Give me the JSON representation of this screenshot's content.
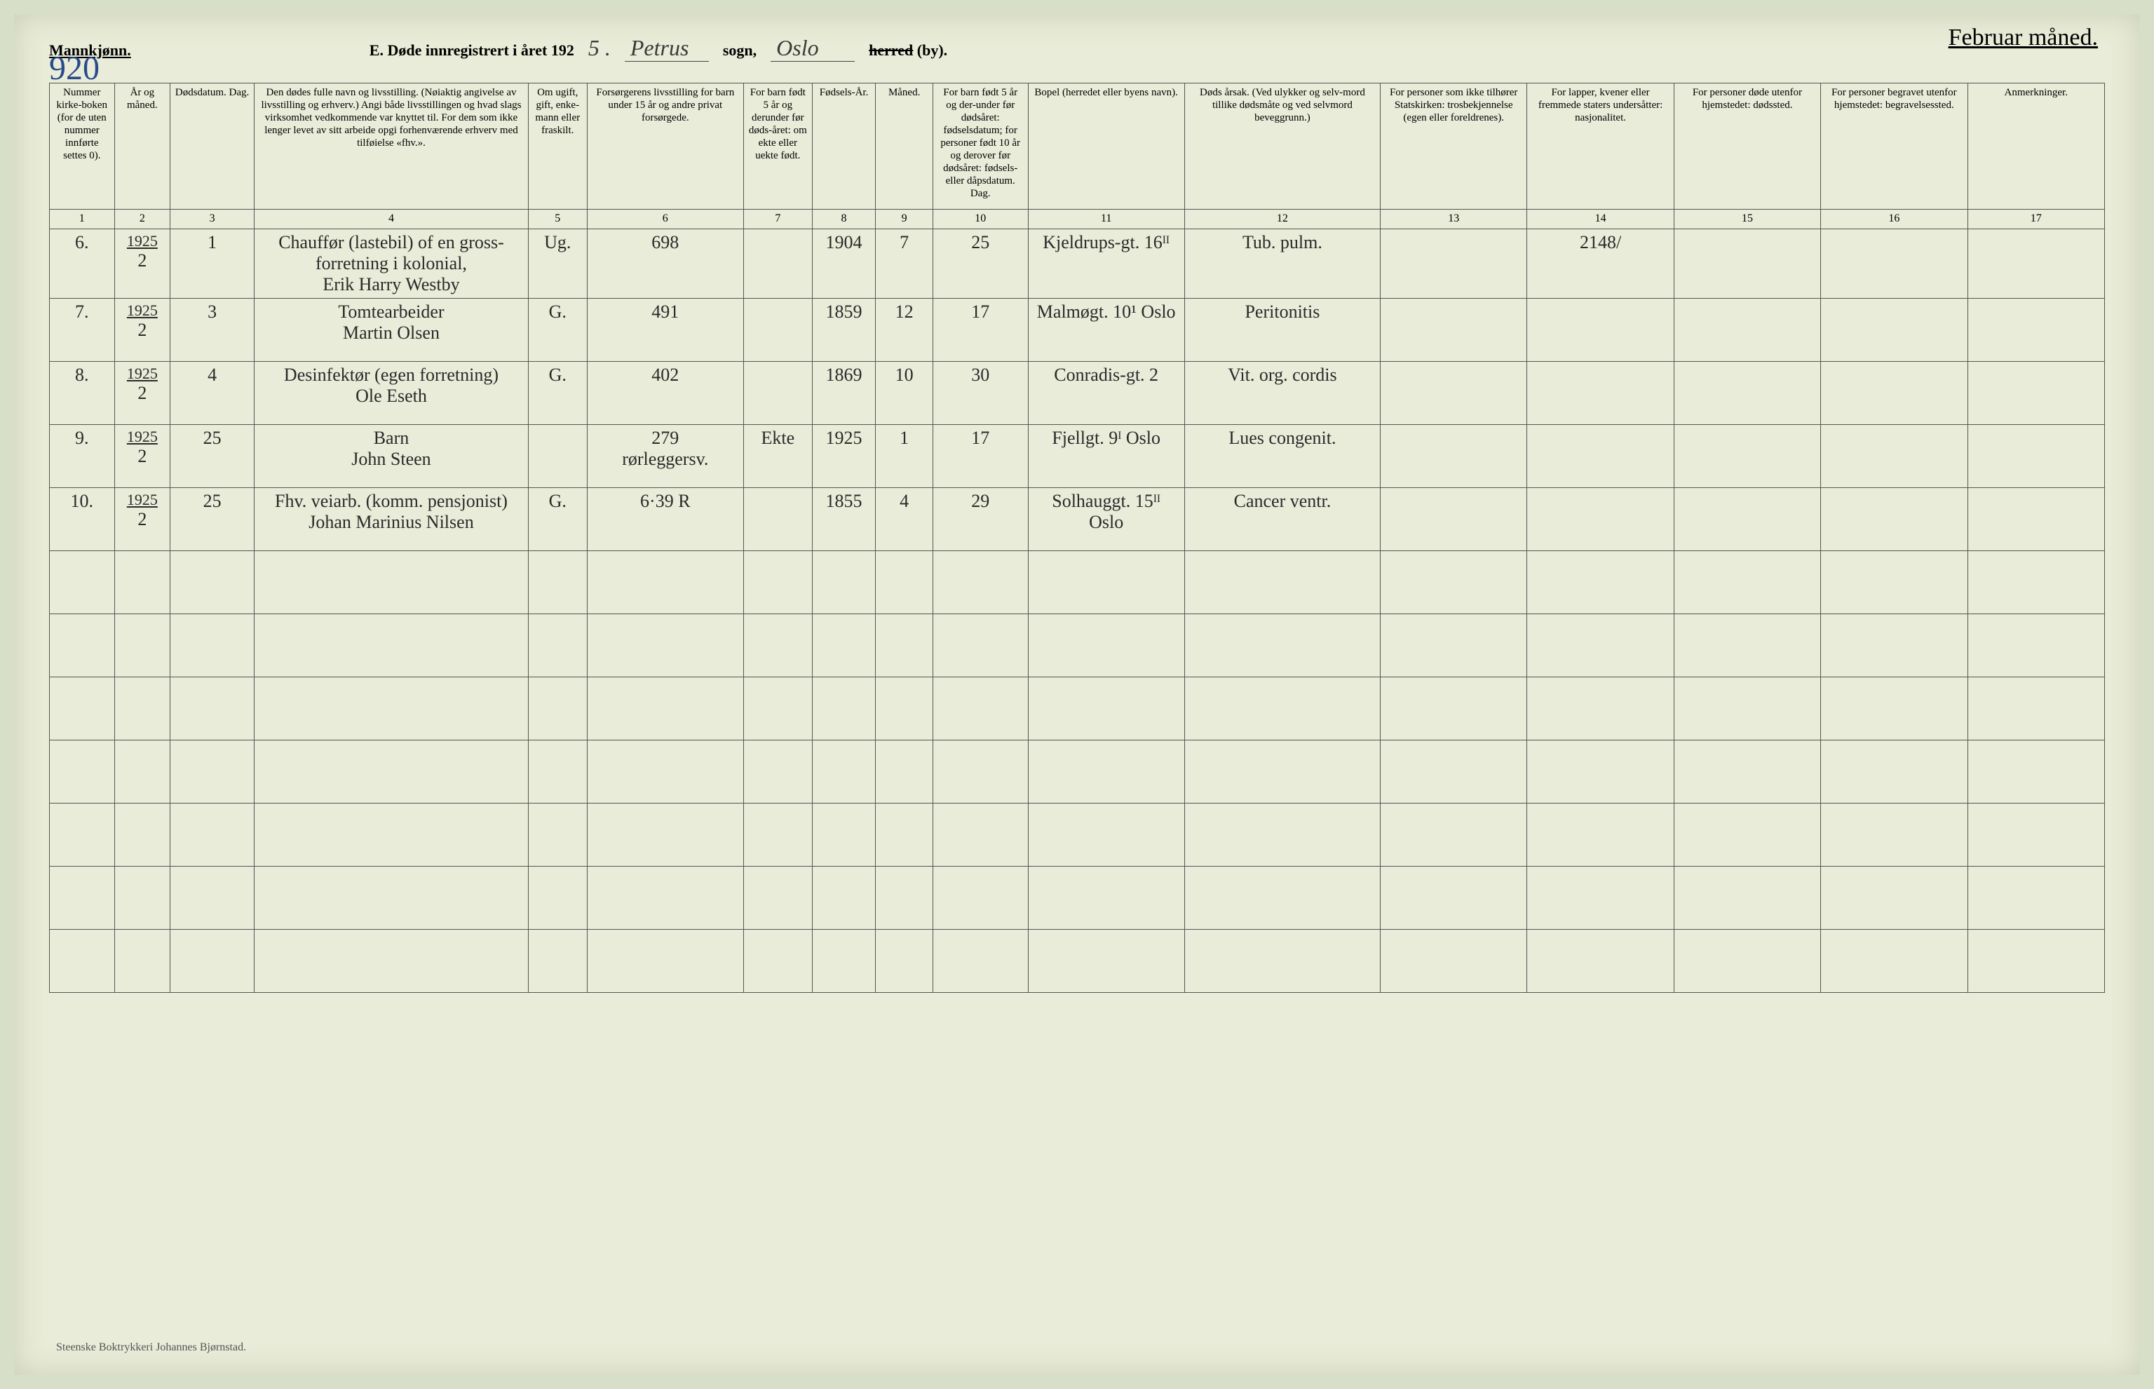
{
  "header": {
    "gender": "Mannkjønn.",
    "form_label": "E.  Døde innregistrert i året 192",
    "year_suffix": "5 .",
    "parish_value": "Petrus",
    "parish_label": "sogn,",
    "county_value": "Oslo",
    "by_label_struck": "herred",
    "by_label": " (by).",
    "month_header": "Februar måned.",
    "page_number": "920"
  },
  "columns": [
    {
      "num": "1",
      "label": "Nummer kirke-boken (for de uten nummer innførte settes 0)."
    },
    {
      "num": "2",
      "label": "År og måned."
    },
    {
      "num": "3",
      "label": "Dødsdatum.\nDag."
    },
    {
      "num": "4",
      "label": "Den dødes fulle navn og livsstilling. (Nøiaktig angivelse av livsstilling og erhverv.) Angi både livsstillingen og hvad slags virksomhet vedkommende var knyttet til. For dem som ikke lenger levet av sitt arbeide opgi forhenværende erhverv med tilføielse «fhv.»."
    },
    {
      "num": "5",
      "label": "Om ugift, gift, enke-mann eller fraskilt."
    },
    {
      "num": "6",
      "label": "Forsørgerens livsstilling for barn under 15 år og andre privat forsørgede."
    },
    {
      "num": "7",
      "label": "For barn født 5 år og derunder før døds-året: om ekte eller uekte født."
    },
    {
      "num": "8",
      "label": "Fødsels-År."
    },
    {
      "num": "9",
      "label": "Måned."
    },
    {
      "num": "10",
      "label": "For barn født 5 år og der-under før dødsåret: fødselsdatum; for personer født 10 år og derover før dødsåret: fødsels- eller dåpsdatum.\nDag."
    },
    {
      "num": "11",
      "label": "Bopel (herredet eller byens navn)."
    },
    {
      "num": "12",
      "label": "Døds årsak. (Ved ulykker og selv-mord tillike dødsmåte og ved selvmord beveggrunn.)"
    },
    {
      "num": "13",
      "label": "For personer som ikke tilhører Statskirken: trosbekjennelse (egen eller foreldrenes)."
    },
    {
      "num": "14",
      "label": "For lapper, kvener eller fremmede staters undersåtter: nasjonalitet."
    },
    {
      "num": "15",
      "label": "For personer døde utenfor hjemstedet: dødssted."
    },
    {
      "num": "16",
      "label": "For personer begravet utenfor hjemstedet: begravelsessted."
    },
    {
      "num": "17",
      "label": "Anmerkninger."
    }
  ],
  "rows": [
    {
      "num": "6.",
      "year": "1925",
      "month": "2",
      "day": "1",
      "name": "Chauffør (lastebil) of en gross-forretning i kolonial,\nErik Harry Westby",
      "status": "Ug.",
      "provider": "698",
      "legit": "",
      "birth_year": "1904",
      "birth_m": "7",
      "birth_d": "25",
      "residence": "Kjeldrups-gt. 16ᴵᴵ",
      "cause": "Tub. pulm.",
      "faith": "",
      "nat": "2148/",
      "deathpl": "",
      "burial": "",
      "notes": ""
    },
    {
      "num": "7.",
      "year": "1925",
      "month": "2",
      "day": "3",
      "name": "Tomtearbeider\nMartin Olsen",
      "status": "G.",
      "provider": "491",
      "legit": "",
      "birth_year": "1859",
      "birth_m": "12",
      "birth_d": "17",
      "residence": "Malmøgt. 10¹  Oslo",
      "cause": "Peritonitis",
      "faith": "",
      "nat": "",
      "deathpl": "",
      "burial": "",
      "notes": ""
    },
    {
      "num": "8.",
      "year": "1925",
      "month": "2",
      "day": "4",
      "name": "Desinfektør (egen forretning)\nOle Eseth",
      "status": "G.",
      "provider": "402",
      "legit": "",
      "birth_year": "1869",
      "birth_m": "10",
      "birth_d": "30",
      "residence": "Conradis-gt. 2",
      "cause": "Vit. org. cordis",
      "faith": "",
      "nat": "",
      "deathpl": "",
      "burial": "",
      "notes": ""
    },
    {
      "num": "9.",
      "year": "1925",
      "month": "2",
      "day": "25",
      "name": "Barn\nJohn Steen",
      "status": "",
      "provider": "279\nrørleggersv.",
      "legit": "Ekte",
      "birth_year": "1925",
      "birth_m": "1",
      "birth_d": "17",
      "residence": "Fjellgt. 9ᴵ  Oslo",
      "cause": "Lues congenit.",
      "faith": "",
      "nat": "",
      "deathpl": "",
      "burial": "",
      "notes": ""
    },
    {
      "num": "10.",
      "year": "1925",
      "month": "2",
      "day": "25",
      "name": "Fhv. veiarb. (komm. pensjonist)\nJohan Marinius Nilsen",
      "status": "G.",
      "provider": "6·39 R",
      "legit": "",
      "birth_year": "1855",
      "birth_m": "4",
      "birth_d": "29",
      "residence": "Solhauggt. 15ᴵᴵ  Oslo",
      "cause": "Cancer ventr.",
      "faith": "",
      "nat": "",
      "deathpl": "",
      "burial": "",
      "notes": ""
    }
  ],
  "empty_row_count": 7,
  "footer": "Steenske Boktrykkeri Johannes Bjørnstad.",
  "colors": {
    "page_bg": "#e8ecd8",
    "ink": "#2a2a2a",
    "blue_ink": "#2a4a8a",
    "rule": "#555555"
  }
}
